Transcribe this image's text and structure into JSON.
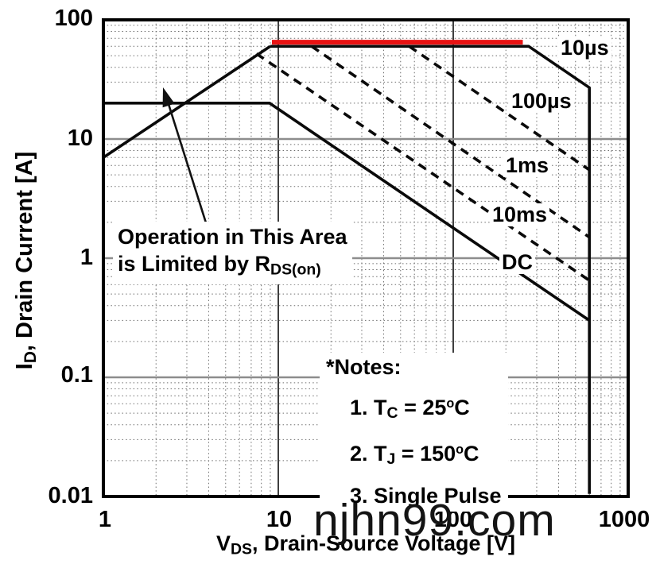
{
  "colors": {
    "highlight": "#e81313",
    "curve": "#0a0a0a",
    "grid_minor": "#6e6e6e",
    "grid_major": "#8d8d8d",
    "background": "#ffffff"
  },
  "axes": {
    "x": {
      "title_pre": "V",
      "title_sub": "DS",
      "title_post": ", Drain-Source Voltage [V]",
      "tick_labels": [
        "1",
        "10",
        "100",
        "1000"
      ]
    },
    "y": {
      "title_pre": "I",
      "title_sub": "D",
      "title_post": ", Drain Current [A]",
      "tick_labels": [
        "100",
        "10",
        "1",
        "0.1",
        "0.01"
      ]
    }
  },
  "annotation": {
    "line1": "Operation in This Area",
    "line2_pre": "is Limited by R",
    "line2_sub": "DS(on)"
  },
  "notes": {
    "title": "*Notes:",
    "item1_pre": "1. T",
    "item1_sub": "C",
    "item1_mid": " = 25",
    "item1_sup": "o",
    "item1_post": "C",
    "item2_pre": "2. T",
    "item2_sub": "J",
    "item2_mid": " = 150",
    "item2_sup": "o",
    "item2_post": "C",
    "item3": "3. Single Pulse"
  },
  "watermark": "njhn99.com",
  "chart_data": {
    "type": "line",
    "title": "",
    "xlabel": "VDS, Drain-Source Voltage [V]",
    "ylabel": "ID, Drain Current [A]",
    "x_scale": "log",
    "y_scale": "log",
    "xlim": [
      1,
      1000
    ],
    "ylim": [
      0.01,
      100
    ],
    "grid": true,
    "x_tick_values": [
      1,
      10,
      100,
      1000
    ],
    "y_tick_values": [
      100,
      10,
      1,
      0.1,
      0.01
    ],
    "series": [
      {
        "name": "rdson-limit-line",
        "label": "",
        "style": "solid",
        "points": [
          [
            1,
            7
          ],
          [
            9,
            60
          ]
        ]
      },
      {
        "name": "pulse-10us",
        "label": "10µs",
        "style": "solid",
        "points": [
          [
            9,
            60
          ],
          [
            270,
            60
          ],
          [
            600,
            27
          ],
          [
            600,
            0.0105
          ]
        ]
      },
      {
        "name": "pulse-100us",
        "label": "100µs",
        "style": "dashed",
        "points": [
          [
            56,
            60
          ],
          [
            600,
            5.5
          ]
        ]
      },
      {
        "name": "pulse-1ms",
        "label": "1ms",
        "style": "dashed",
        "points": [
          [
            15.5,
            60
          ],
          [
            600,
            1.5
          ]
        ]
      },
      {
        "name": "pulse-10ms",
        "label": "10ms",
        "style": "dashed",
        "points": [
          [
            7.5,
            52
          ],
          [
            600,
            0.65
          ]
        ]
      },
      {
        "name": "dc",
        "label": "DC",
        "style": "solid",
        "points": [
          [
            1,
            20
          ],
          [
            8.9,
            20
          ],
          [
            600,
            0.3
          ]
        ]
      },
      {
        "name": "current-limit-highlight",
        "label": "",
        "style": "highlight",
        "points": [
          [
            9.2,
            65
          ],
          [
            250,
            65
          ]
        ]
      }
    ]
  }
}
